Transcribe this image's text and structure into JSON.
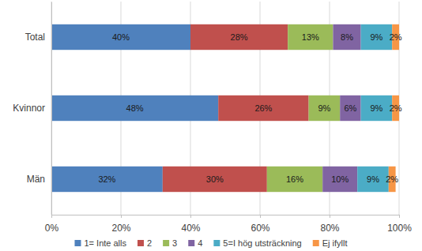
{
  "chart_data": {
    "type": "bar",
    "orientation": "horizontal",
    "stacked": true,
    "data_labels": true,
    "grid": true,
    "legend": "bottom",
    "categories": [
      "Total",
      "Kvinnor",
      "Män"
    ],
    "xlim": [
      0,
      100
    ],
    "xticks": [
      {
        "value": 0,
        "label": "0%"
      },
      {
        "value": 20,
        "label": "20%"
      },
      {
        "value": 40,
        "label": "40%"
      },
      {
        "value": 60,
        "label": "60%"
      },
      {
        "value": 80,
        "label": "80%"
      },
      {
        "value": 100,
        "label": "100%"
      }
    ],
    "series": [
      {
        "name": "1= Inte alls",
        "color": "#4f81bd",
        "values": [
          40,
          48,
          32
        ],
        "value_labels": [
          "40%",
          "48%",
          "32%"
        ]
      },
      {
        "name": "2",
        "color": "#c0504d",
        "values": [
          28,
          26,
          30
        ],
        "value_labels": [
          "28%",
          "26%",
          "30%"
        ]
      },
      {
        "name": "3",
        "color": "#9bbb59",
        "values": [
          13,
          9,
          16
        ],
        "value_labels": [
          "13%",
          "9%",
          "16%"
        ]
      },
      {
        "name": "4",
        "color": "#8064a2",
        "values": [
          8,
          6,
          10
        ],
        "value_labels": [
          "8%",
          "6%",
          "10%"
        ]
      },
      {
        "name": "5=I hög utsträckning",
        "color": "#4bacc6",
        "values": [
          9,
          9,
          9
        ],
        "value_labels": [
          "9%",
          "9%",
          "9%"
        ]
      },
      {
        "name": "Ej ifyllt",
        "color": "#f79646",
        "values": [
          2,
          2,
          2
        ],
        "value_labels": [
          "2%",
          "2%",
          "2%"
        ]
      }
    ]
  }
}
